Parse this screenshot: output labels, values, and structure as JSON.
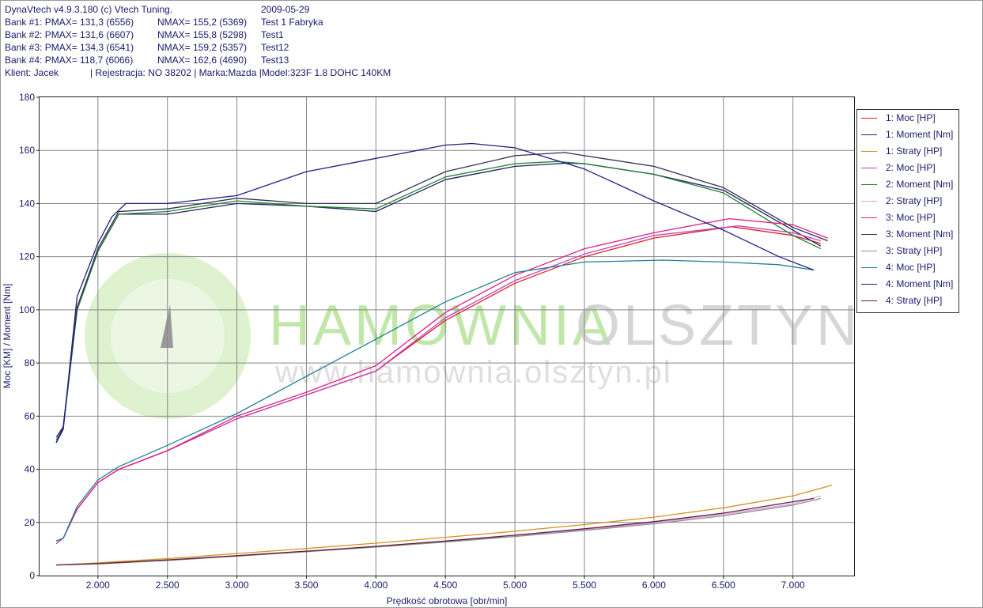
{
  "header": {
    "line0": [
      "DynaVtech v4.9.3.180 (c) Vtech Tuning.",
      "",
      "2009-05-29"
    ],
    "banks": [
      [
        "Bank #1: PMAX= 131,3 (6556)",
        "NMAX= 155,2 (5369)",
        "Test 1 Fabryka"
      ],
      [
        "Bank #2: PMAX= 131,6 (6607)",
        "NMAX= 155,8 (5298)",
        "Test1"
      ],
      [
        "Bank #3: PMAX= 134,3 (6541)",
        "NMAX= 159,2 (5357)",
        "Test12"
      ],
      [
        "Bank #4: PMAX= 118,7 (6066)",
        "NMAX= 162,6 (4690)",
        "Test13"
      ]
    ],
    "client": "Klient: Jacek            | Rejestracja: NO 38202 | Marka:Mazda |Model:323F 1.8 DOHC 140KM"
  },
  "watermark": {
    "title_green": "HAMOWNIA",
    "title_gray": "OLSZTYN",
    "url": "www.hamownia.olsztyn.pl"
  },
  "legend": [
    {
      "label": "1: Moc [HP]",
      "color": "#e02020"
    },
    {
      "label": "1: Moment [Nm]",
      "color": "#202060"
    },
    {
      "label": "1: Straty [HP]",
      "color": "#d89020"
    },
    {
      "label": "2: Moc [HP]",
      "color": "#c040c0"
    },
    {
      "label": "2: Moment [Nm]",
      "color": "#208030"
    },
    {
      "label": "2: Straty [HP]",
      "color": "#e0a0e0"
    },
    {
      "label": "3: Moc [HP]",
      "color": "#e02080"
    },
    {
      "label": "3: Moment [Nm]",
      "color": "#303050"
    },
    {
      "label": "3: Straty [HP]",
      "color": "#909090"
    },
    {
      "label": "4: Moc [HP]",
      "color": "#208090"
    },
    {
      "label": "4: Moment [Nm]",
      "color": "#202080"
    },
    {
      "label": "4: Straty [HP]",
      "color": "#602040"
    }
  ],
  "chart_data": {
    "type": "line",
    "xlabel": "Prędkość obrotowa [obr/min]",
    "ylabel": "Moc [KM] / Moment [Nm]",
    "xlim": [
      1580,
      7440
    ],
    "ylim": [
      0,
      180
    ],
    "x_ticks": [
      2000,
      2500,
      3000,
      3500,
      4000,
      4500,
      5000,
      5500,
      6000,
      6500,
      7000
    ],
    "x_tick_labels": [
      "2.000",
      "2.500",
      "3.000",
      "3.500",
      "4.000",
      "4.500",
      "5.000",
      "5.500",
      "6.000",
      "6.500",
      "7.000"
    ],
    "y_ticks": [
      0,
      20,
      40,
      60,
      80,
      100,
      120,
      140,
      160,
      180
    ],
    "grid": true,
    "legend_position": "right",
    "series": [
      {
        "name": "1: Moc [HP]",
        "color": "#e02020",
        "x": [
          1700,
          1750,
          1850,
          2000,
          2150,
          2500,
          3000,
          3500,
          4000,
          4500,
          5000,
          5500,
          6000,
          6556,
          7000,
          7200
        ],
        "y": [
          13,
          14,
          25,
          35,
          40,
          47,
          59,
          68,
          77,
          96,
          110,
          120,
          127,
          131.3,
          128,
          125
        ]
      },
      {
        "name": "1: Moment [Nm]",
        "color": "#202060",
        "x": [
          1700,
          1750,
          1850,
          2000,
          2150,
          2500,
          3000,
          3500,
          4000,
          4500,
          5000,
          5369,
          5500,
          6000,
          6500,
          7000,
          7200
        ],
        "y": [
          52,
          56,
          100,
          122,
          136,
          136,
          140,
          139,
          137,
          149,
          154,
          155.2,
          155,
          151,
          145,
          130,
          124
        ]
      },
      {
        "name": "1: Straty [HP]",
        "color": "#d89020",
        "x": [
          1700,
          2000,
          2500,
          3000,
          3500,
          4000,
          4500,
          5000,
          5500,
          6000,
          6500,
          7000,
          7280
        ],
        "y": [
          4,
          4.8,
          6.4,
          8.3,
          10.2,
          12.2,
          14.4,
          16.7,
          19.2,
          22,
          25.5,
          30,
          34
        ]
      },
      {
        "name": "2: Moc [HP]",
        "color": "#c040c0",
        "x": [
          1700,
          1750,
          1850,
          2000,
          2150,
          2500,
          3000,
          3500,
          4000,
          4500,
          5000,
          5500,
          6000,
          6607,
          7000,
          7200
        ],
        "y": [
          12,
          14,
          25,
          35,
          40,
          47,
          59,
          68,
          77,
          97,
          111,
          121,
          128,
          131.6,
          129,
          126
        ]
      },
      {
        "name": "2: Moment [Nm]",
        "color": "#208030",
        "x": [
          1700,
          1750,
          1850,
          2000,
          2150,
          2500,
          3000,
          3500,
          4000,
          4500,
          5000,
          5298,
          5500,
          6000,
          6500,
          7000,
          7200
        ],
        "y": [
          51,
          55,
          100,
          122,
          136,
          137,
          141,
          139,
          138,
          150,
          155,
          155.8,
          155,
          151,
          144,
          128,
          123
        ]
      },
      {
        "name": "2: Straty [HP]",
        "color": "#e0a0e0",
        "x": [
          1700,
          2000,
          2500,
          3000,
          3500,
          4000,
          4500,
          5000,
          5500,
          6000,
          6500,
          7000,
          7200
        ],
        "y": [
          4,
          4.5,
          5.8,
          7.4,
          9.1,
          10.9,
          12.9,
          15,
          17.3,
          19.9,
          23,
          27,
          30
        ]
      },
      {
        "name": "3: Moc [HP]",
        "color": "#e02080",
        "x": [
          1700,
          1750,
          1850,
          2000,
          2150,
          2500,
          3000,
          3500,
          4000,
          4500,
          5000,
          5500,
          6000,
          6541,
          7000,
          7250
        ],
        "y": [
          13,
          14,
          25,
          35,
          40,
          47,
          60,
          69,
          79,
          99,
          113,
          123,
          129,
          134.3,
          132,
          127
        ]
      },
      {
        "name": "3: Moment [Nm]",
        "color": "#303050",
        "x": [
          1700,
          1750,
          1850,
          2000,
          2150,
          2500,
          3000,
          3500,
          4000,
          4500,
          5000,
          5357,
          5500,
          6000,
          6500,
          7000,
          7250
        ],
        "y": [
          50,
          56,
          101,
          123,
          137,
          138,
          142,
          140,
          140,
          152,
          158,
          159.2,
          158,
          154,
          146,
          131,
          126
        ]
      },
      {
        "name": "3: Straty [HP]",
        "color": "#909090",
        "x": [
          1700,
          2000,
          2500,
          3000,
          3500,
          4000,
          4500,
          5000,
          5500,
          6000,
          6500,
          7000,
          7200
        ],
        "y": [
          4,
          4.4,
          5.7,
          7.3,
          9,
          10.7,
          12.6,
          14.7,
          17,
          19.5,
          22.5,
          26.5,
          29
        ]
      },
      {
        "name": "4: Moc [HP]",
        "color": "#208090",
        "x": [
          1700,
          1750,
          1850,
          2000,
          2150,
          2500,
          3000,
          3500,
          4000,
          4500,
          5000,
          5500,
          6066,
          6500,
          6900,
          7150
        ],
        "y": [
          13,
          14,
          26,
          36,
          41,
          49,
          61,
          75,
          89,
          103,
          114,
          118,
          118.7,
          118,
          117,
          115
        ]
      },
      {
        "name": "4: Moment [Nm]",
        "color": "#202080",
        "x": [
          1700,
          1750,
          1850,
          2000,
          2100,
          2200,
          2500,
          3000,
          3500,
          4000,
          4500,
          4690,
          5000,
          5500,
          6000,
          6500,
          6900,
          7150
        ],
        "y": [
          50,
          55,
          105,
          125,
          135,
          140,
          140,
          143,
          152,
          157,
          162,
          162.6,
          161,
          153,
          141,
          130,
          120,
          115
        ]
      },
      {
        "name": "4: Straty [HP]",
        "color": "#602040",
        "x": [
          1700,
          2000,
          2500,
          3000,
          3500,
          4000,
          4500,
          5000,
          5500,
          6000,
          6500,
          7000,
          7150
        ],
        "y": [
          4,
          4.5,
          5.9,
          7.5,
          9.2,
          11,
          13,
          15.2,
          17.6,
          20.3,
          23.5,
          27.8,
          29
        ]
      }
    ]
  }
}
